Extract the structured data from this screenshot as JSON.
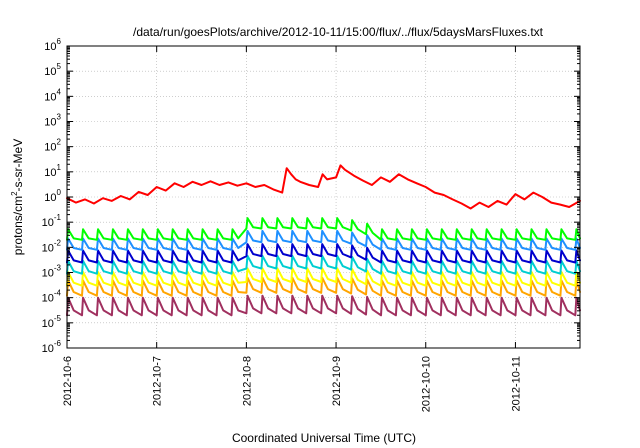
{
  "chart_data": {
    "type": "line",
    "title": "/data/run/goesPlots/archive/2012-10-11/15:00/flux/../flux/5daysMarsFluxes.txt",
    "xlabel": "Coordinated Universal Time (UTC)",
    "ylabel": "protons/cm²-s-sr-MeV",
    "ylabel_parts": {
      "base": "protons/cm",
      "sup": "2",
      "rest": "-s-sr-MeV"
    },
    "xlim": [
      0,
      5.72
    ],
    "x_tick_labels": [
      "2012-10-6",
      "2012-10-7",
      "2012-10-8",
      "2012-10-9",
      "2012-10-10",
      "2012-10-11"
    ],
    "yscale": "log",
    "ylim": [
      1e-06,
      1000000.0
    ],
    "y_tick_exponents": [
      -6,
      -5,
      -4,
      -3,
      -2,
      -1,
      0,
      1,
      2,
      3,
      4,
      5,
      6
    ],
    "grid": true,
    "legend": "none",
    "series": [
      {
        "color": "#ff0000",
        "x": [
          0.0,
          0.1,
          0.2,
          0.3,
          0.4,
          0.5,
          0.6,
          0.7,
          0.8,
          0.9,
          1.0,
          1.1,
          1.2,
          1.3,
          1.4,
          1.5,
          1.6,
          1.7,
          1.8,
          1.9,
          2.0,
          2.1,
          2.2,
          2.3,
          2.4,
          2.45,
          2.5,
          2.55,
          2.6,
          2.7,
          2.8,
          2.85,
          2.9,
          3.0,
          3.05,
          3.1,
          3.2,
          3.3,
          3.4,
          3.5,
          3.6,
          3.7,
          3.8,
          3.9,
          4.0,
          4.1,
          4.2,
          4.3,
          4.4,
          4.5,
          4.6,
          4.7,
          4.8,
          4.9,
          5.0,
          5.1,
          5.2,
          5.3,
          5.4,
          5.5,
          5.6,
          5.72
        ],
        "y": [
          0.9,
          0.6,
          0.8,
          0.55,
          0.9,
          0.7,
          1.1,
          0.8,
          1.6,
          1.2,
          2.5,
          1.8,
          3.5,
          2.5,
          4.0,
          3.0,
          4.2,
          3.0,
          3.8,
          2.8,
          3.5,
          2.5,
          3.0,
          2.0,
          1.5,
          14.0,
          8.0,
          5.0,
          4.0,
          3.0,
          2.5,
          8.0,
          5.0,
          6.0,
          18.0,
          12.0,
          7.0,
          4.5,
          3.0,
          6.0,
          4.0,
          8.0,
          5.0,
          3.5,
          2.5,
          1.5,
          1.2,
          0.8,
          0.55,
          0.35,
          0.6,
          0.4,
          0.7,
          0.5,
          1.3,
          0.8,
          1.5,
          1.0,
          0.6,
          0.5,
          0.4,
          0.7
        ]
      },
      {
        "color": "#00ff00",
        "base": 0.02,
        "amp": 2.6,
        "bump": 2.8
      },
      {
        "color": "#1e90ff",
        "base": 0.008,
        "amp": 2.8,
        "bump": 2.0
      },
      {
        "color": "#0000cd",
        "base": 0.0025,
        "amp": 3.0,
        "bump": 1.8
      },
      {
        "color": "#00ced1",
        "base": 0.0009,
        "amp": 3.2,
        "bump": 1.6
      },
      {
        "color": "#ffff00",
        "base": 0.0003,
        "amp": 3.5,
        "bump": 1.4
      },
      {
        "color": "#ffa500",
        "base": 0.00012,
        "amp": 4.0,
        "bump": 1.3
      },
      {
        "color": "#a0305f",
        "base": 2e-05,
        "amp": 5.0,
        "bump": 1.2
      }
    ],
    "sawtooth_period": 0.1667
  }
}
